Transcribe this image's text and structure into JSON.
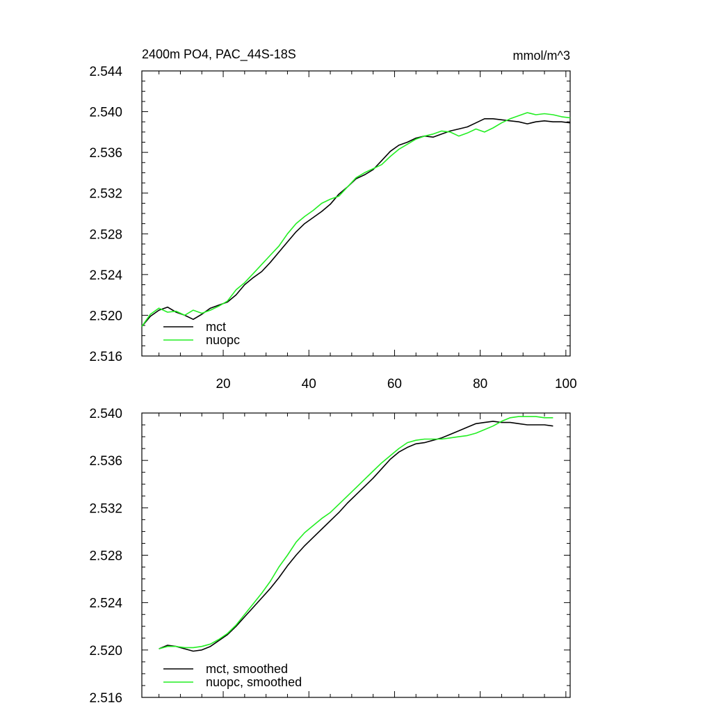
{
  "chart_data": [
    {
      "type": "line",
      "title": "2400m PO4, PAC_44S-18S",
      "units": "mmol/m^3",
      "xlabel": "",
      "ylabel": "",
      "xlim": [
        1,
        101
      ],
      "ylim": [
        2.516,
        2.544
      ],
      "xticks": [
        20,
        40,
        60,
        80,
        100
      ],
      "yticks": [
        2.516,
        2.52,
        2.524,
        2.528,
        2.532,
        2.536,
        2.54,
        2.544
      ],
      "ytick_labels": [
        "2.516",
        "2.520",
        "2.524",
        "2.528",
        "2.532",
        "2.536",
        "2.540",
        "2.544"
      ],
      "xtick_labels": [
        "20",
        "40",
        "60",
        "80",
        "100"
      ],
      "legend_position": "bottom-left",
      "series": [
        {
          "name": "mct",
          "color": "#000000",
          "x": [
            1,
            3,
            5,
            7,
            9,
            11,
            13,
            15,
            17,
            19,
            21,
            23,
            25,
            27,
            29,
            31,
            33,
            35,
            37,
            39,
            41,
            43,
            45,
            47,
            49,
            51,
            53,
            55,
            57,
            59,
            61,
            63,
            65,
            67,
            69,
            71,
            73,
            75,
            77,
            79,
            81,
            83,
            85,
            87,
            89,
            91,
            93,
            95,
            97,
            99,
            101
          ],
          "values": [
            2.5189,
            2.5199,
            2.5205,
            2.5208,
            2.5203,
            2.52,
            2.5196,
            2.5201,
            2.5207,
            2.521,
            2.5213,
            2.522,
            2.523,
            2.5237,
            2.5243,
            2.5252,
            2.5262,
            2.5272,
            2.5282,
            2.529,
            2.5296,
            2.5302,
            2.5309,
            2.5319,
            2.5326,
            2.5334,
            2.5338,
            2.5343,
            2.5352,
            2.5361,
            2.5367,
            2.537,
            2.5374,
            2.5376,
            2.5375,
            2.5378,
            2.5381,
            2.5383,
            2.5385,
            2.5389,
            2.5393,
            2.5393,
            2.5392,
            2.5391,
            2.539,
            2.5388,
            2.539,
            2.5391,
            2.539,
            2.539,
            2.5389
          ]
        },
        {
          "name": "nuopc",
          "color": "#22ee22",
          "x": [
            1,
            3,
            5,
            7,
            9,
            11,
            13,
            15,
            17,
            19,
            21,
            23,
            25,
            27,
            29,
            31,
            33,
            35,
            37,
            39,
            41,
            43,
            45,
            47,
            49,
            51,
            53,
            55,
            57,
            59,
            61,
            63,
            65,
            67,
            69,
            71,
            73,
            75,
            77,
            79,
            81,
            83,
            85,
            87,
            89,
            91,
            93,
            95,
            97,
            99,
            101
          ],
          "values": [
            2.5189,
            2.5201,
            2.5207,
            2.5203,
            2.5204,
            2.52,
            2.5205,
            2.5202,
            2.5205,
            2.5209,
            2.5214,
            2.5225,
            2.5232,
            2.5241,
            2.525,
            2.5259,
            2.5268,
            2.528,
            2.529,
            2.5297,
            2.5303,
            2.531,
            2.5314,
            2.5317,
            2.5326,
            2.5335,
            2.534,
            2.5344,
            2.5348,
            2.5356,
            2.5363,
            2.5368,
            2.5373,
            2.5376,
            2.5378,
            2.5381,
            2.538,
            2.5376,
            2.5379,
            2.5383,
            2.538,
            2.5384,
            2.5389,
            2.5393,
            2.5396,
            2.5399,
            2.5397,
            2.5398,
            2.5397,
            2.5395,
            2.5394
          ]
        }
      ]
    },
    {
      "type": "line",
      "title": "",
      "xlabel": "",
      "ylabel": "",
      "xlim": [
        1,
        101
      ],
      "ylim": [
        2.516,
        2.54
      ],
      "xticks": [
        20,
        40,
        60,
        80,
        100
      ],
      "yticks": [
        2.516,
        2.52,
        2.524,
        2.528,
        2.532,
        2.536,
        2.54
      ],
      "ytick_labels": [
        "2.516",
        "2.520",
        "2.524",
        "2.528",
        "2.532",
        "2.536",
        "2.540"
      ],
      "legend_position": "bottom-left",
      "series": [
        {
          "name": "mct, smoothed",
          "color": "#000000",
          "x": [
            5,
            7,
            9,
            11,
            13,
            15,
            17,
            19,
            21,
            23,
            25,
            27,
            29,
            31,
            33,
            35,
            37,
            39,
            41,
            43,
            45,
            47,
            49,
            51,
            53,
            55,
            57,
            59,
            61,
            63,
            65,
            67,
            69,
            71,
            73,
            75,
            77,
            79,
            81,
            83,
            85,
            87,
            89,
            91,
            93,
            95,
            97
          ],
          "values": [
            2.5201,
            2.5204,
            2.5203,
            2.5201,
            2.5199,
            2.52,
            2.5203,
            2.5208,
            2.5213,
            2.522,
            2.5228,
            2.5236,
            2.5244,
            2.5252,
            2.5261,
            2.5271,
            2.528,
            2.5288,
            2.5295,
            2.5302,
            2.5309,
            2.5316,
            2.5324,
            2.5331,
            2.5338,
            2.5345,
            2.5353,
            2.5361,
            2.5367,
            2.5371,
            2.5374,
            2.5375,
            2.5377,
            2.5379,
            2.5382,
            2.5385,
            2.5388,
            2.5391,
            2.5392,
            2.5393,
            2.5392,
            2.5392,
            2.5391,
            2.539,
            2.539,
            2.539,
            2.5389
          ]
        },
        {
          "name": "nuopc, smoothed",
          "color": "#22ee22",
          "x": [
            5,
            7,
            9,
            11,
            13,
            15,
            17,
            19,
            21,
            23,
            25,
            27,
            29,
            31,
            33,
            35,
            37,
            39,
            41,
            43,
            45,
            47,
            49,
            51,
            53,
            55,
            57,
            59,
            61,
            63,
            65,
            67,
            69,
            71,
            73,
            75,
            77,
            79,
            81,
            83,
            85,
            87,
            89,
            91,
            93,
            95,
            97
          ],
          "values": [
            2.5201,
            2.5203,
            2.5203,
            2.5202,
            2.5202,
            2.5203,
            2.5205,
            2.5209,
            2.5214,
            2.5221,
            2.523,
            2.5239,
            2.5248,
            2.5258,
            2.527,
            2.528,
            2.5291,
            2.5299,
            2.5305,
            2.5311,
            2.5316,
            2.5323,
            2.533,
            2.5337,
            2.5344,
            2.5351,
            2.5358,
            2.5364,
            2.537,
            2.5375,
            2.5377,
            2.5378,
            2.5378,
            2.5378,
            2.5379,
            2.538,
            2.5381,
            2.5383,
            2.5386,
            2.5389,
            2.5393,
            2.5396,
            2.5397,
            2.5397,
            2.5397,
            2.5396,
            2.5396
          ]
        }
      ]
    }
  ]
}
